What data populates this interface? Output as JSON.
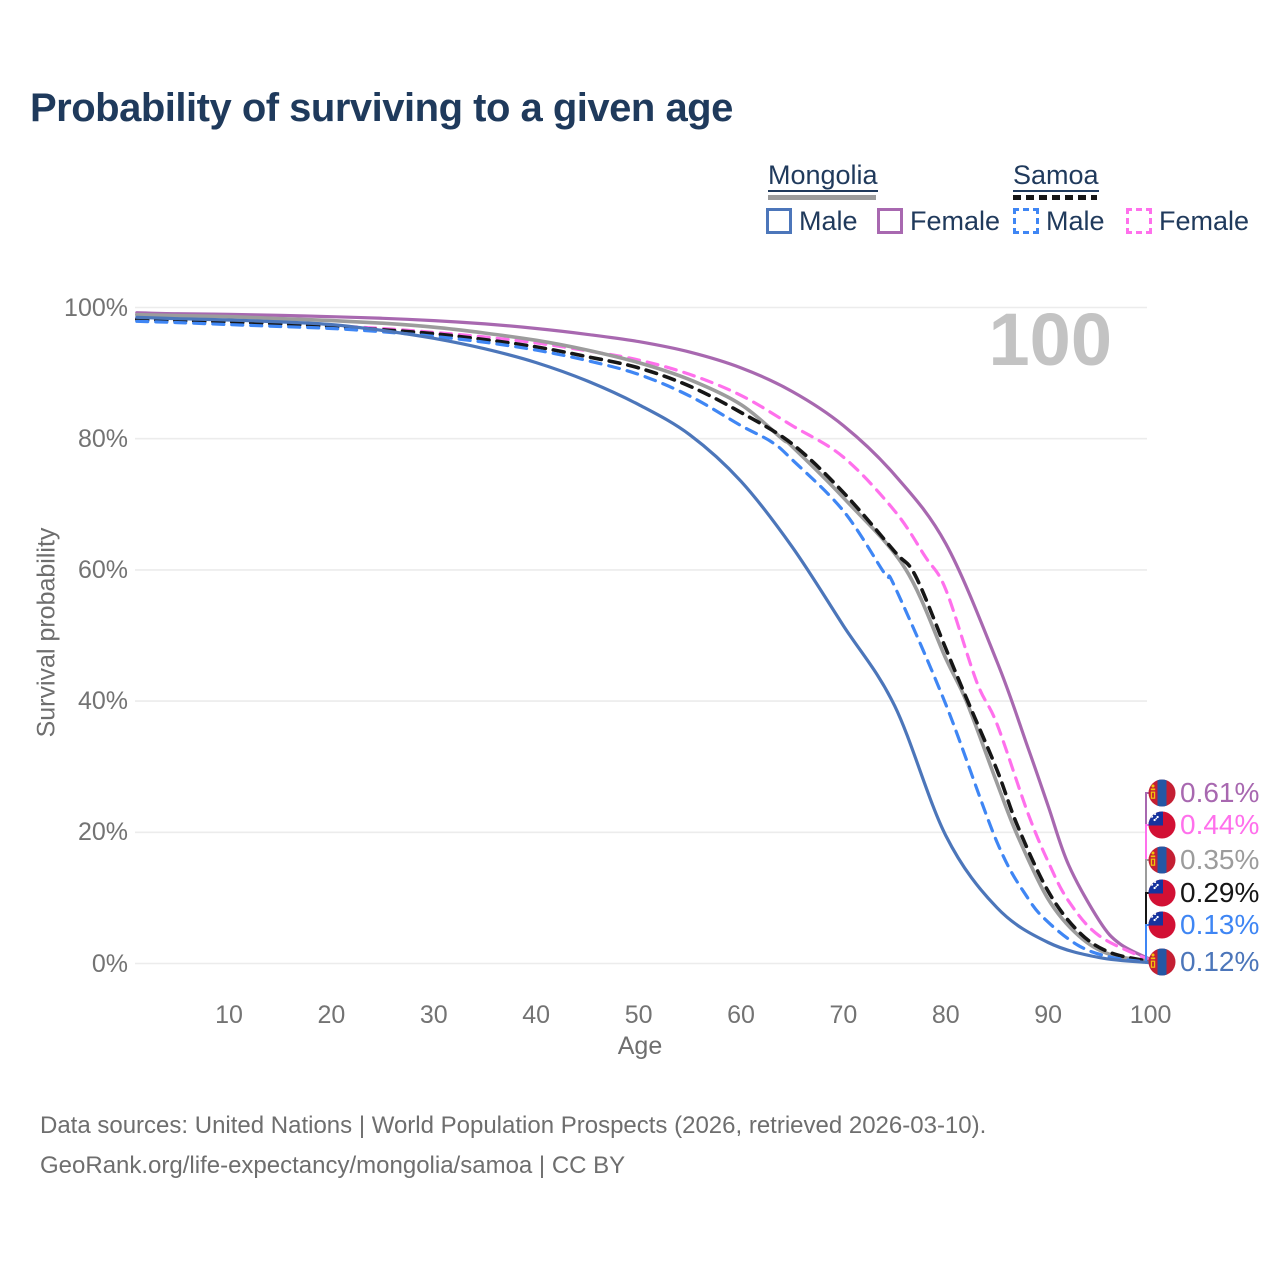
{
  "page": {
    "title": "Probability of surviving to a given age",
    "watermark": "100"
  },
  "legend": {
    "groups": [
      {
        "name": "Mongolia",
        "line_style": "solid",
        "line_color": "#9c9c9c",
        "items": [
          {
            "label": "Male",
            "color": "#4c76ba",
            "dashed": false
          },
          {
            "label": "Female",
            "color": "#a868b0",
            "dashed": false
          }
        ]
      },
      {
        "name": "Samoa",
        "line_style": "dashed",
        "line_color": "#161616",
        "items": [
          {
            "label": "Male",
            "color": "#3f86f4",
            "dashed": true
          },
          {
            "label": "Female",
            "color": "#ff70ec",
            "dashed": true
          }
        ]
      }
    ]
  },
  "axes": {
    "x": {
      "label": "Age",
      "ticks": [
        10,
        20,
        30,
        40,
        50,
        60,
        70,
        80,
        90,
        100
      ]
    },
    "y": {
      "label": "Survival probability",
      "ticks": [
        {
          "value": 0,
          "label": "0%"
        },
        {
          "value": 20,
          "label": "20%"
        },
        {
          "value": 40,
          "label": "40%"
        },
        {
          "value": 60,
          "label": "60%"
        },
        {
          "value": 80,
          "label": "80%"
        },
        {
          "value": 100,
          "label": "100%"
        }
      ]
    }
  },
  "chart_data": {
    "type": "line",
    "title": "Probability of surviving to a given age",
    "xlabel": "Age",
    "ylabel": "Survival probability",
    "xlim": [
      0,
      100
    ],
    "ylim": [
      0,
      100
    ],
    "grid": "horizontal",
    "legend_position": "top-right",
    "series": [
      {
        "id": "mongolia-female",
        "country": "Mongolia",
        "sex": "Female",
        "color": "#a868b0",
        "dashed": false,
        "flag": "mongolia",
        "end_label": "0.61%",
        "points": [
          [
            1,
            99.2
          ],
          [
            5,
            99.05
          ],
          [
            10,
            98.95
          ],
          [
            15,
            98.8
          ],
          [
            20,
            98.6
          ],
          [
            25,
            98.35
          ],
          [
            30,
            98.0
          ],
          [
            35,
            97.5
          ],
          [
            40,
            96.8
          ],
          [
            45,
            95.9
          ],
          [
            50,
            94.8
          ],
          [
            55,
            93.2
          ],
          [
            60,
            90.8
          ],
          [
            65,
            87.2
          ],
          [
            70,
            82.0
          ],
          [
            75,
            74.5
          ],
          [
            80,
            64.0
          ],
          [
            85,
            46.0
          ],
          [
            88,
            33.0
          ],
          [
            90,
            24.0
          ],
          [
            92,
            15.0
          ],
          [
            95,
            6.5
          ],
          [
            97,
            3.0
          ],
          [
            100,
            0.61
          ]
        ]
      },
      {
        "id": "samoa-female",
        "country": "Samoa",
        "sex": "Female",
        "color": "#ff70ec",
        "dashed": true,
        "flag": "samoa",
        "end_label": "0.44%",
        "points": [
          [
            1,
            98.3
          ],
          [
            5,
            98.1
          ],
          [
            10,
            97.8
          ],
          [
            15,
            97.5
          ],
          [
            20,
            97.2
          ],
          [
            25,
            96.8
          ],
          [
            30,
            96.2
          ],
          [
            35,
            95.5
          ],
          [
            40,
            94.6
          ],
          [
            45,
            93.4
          ],
          [
            50,
            92.0
          ],
          [
            55,
            89.8
          ],
          [
            60,
            86.6
          ],
          [
            65,
            82.0
          ],
          [
            70,
            77.2
          ],
          [
            75,
            69.0
          ],
          [
            78,
            62.0
          ],
          [
            80,
            57.0
          ],
          [
            83,
            43.0
          ],
          [
            85,
            36.5
          ],
          [
            88,
            23.0
          ],
          [
            90,
            15.5
          ],
          [
            92,
            9.5
          ],
          [
            95,
            4.2
          ],
          [
            100,
            0.44
          ]
        ]
      },
      {
        "id": "mongolia-total",
        "country": "Mongolia",
        "sex": "Both",
        "color": "#9c9c9c",
        "dashed": false,
        "flag": "mongolia",
        "end_label": "0.35%",
        "points": [
          [
            1,
            98.9
          ],
          [
            5,
            98.75
          ],
          [
            10,
            98.6
          ],
          [
            15,
            98.3
          ],
          [
            20,
            98.0
          ],
          [
            25,
            97.6
          ],
          [
            30,
            97.0
          ],
          [
            35,
            96.1
          ],
          [
            40,
            95.0
          ],
          [
            45,
            93.5
          ],
          [
            50,
            91.6
          ],
          [
            55,
            89.0
          ],
          [
            60,
            85.2
          ],
          [
            64,
            80.0
          ],
          [
            65,
            78.8
          ],
          [
            70,
            71.0
          ],
          [
            76,
            60.3
          ],
          [
            80,
            46.5
          ],
          [
            82,
            40.0
          ],
          [
            85,
            27.5
          ],
          [
            87,
            19.5
          ],
          [
            90,
            9.8
          ],
          [
            93,
            4.2
          ],
          [
            96,
            1.4
          ],
          [
            100,
            0.35
          ]
        ]
      },
      {
        "id": "samoa-total",
        "country": "Samoa",
        "sex": "Both",
        "color": "#161616",
        "dashed": true,
        "flag": "samoa",
        "end_label": "0.29%",
        "points": [
          [
            1,
            98.2
          ],
          [
            5,
            98.0
          ],
          [
            10,
            97.8
          ],
          [
            15,
            97.5
          ],
          [
            20,
            97.1
          ],
          [
            25,
            96.6
          ],
          [
            30,
            96.0
          ],
          [
            35,
            95.1
          ],
          [
            40,
            94.0
          ],
          [
            45,
            92.5
          ],
          [
            50,
            90.8
          ],
          [
            55,
            88.0
          ],
          [
            60,
            84.0
          ],
          [
            65,
            79.2
          ],
          [
            70,
            71.8
          ],
          [
            75,
            62.8
          ],
          [
            77,
            59.2
          ],
          [
            80,
            48.0
          ],
          [
            82,
            40.5
          ],
          [
            85,
            29.5
          ],
          [
            87,
            21.0
          ],
          [
            90,
            11.0
          ],
          [
            93,
            4.8
          ],
          [
            96,
            1.7
          ],
          [
            100,
            0.29
          ]
        ]
      },
      {
        "id": "samoa-male",
        "country": "Samoa",
        "sex": "Male",
        "color": "#3f86f4",
        "dashed": true,
        "flag": "samoa",
        "end_label": "0.13%",
        "points": [
          [
            1,
            97.9
          ],
          [
            5,
            97.7
          ],
          [
            10,
            97.4
          ],
          [
            15,
            97.1
          ],
          [
            20,
            96.8
          ],
          [
            25,
            96.3
          ],
          [
            30,
            95.6
          ],
          [
            35,
            94.7
          ],
          [
            40,
            93.5
          ],
          [
            45,
            91.9
          ],
          [
            50,
            89.8
          ],
          [
            55,
            86.5
          ],
          [
            60,
            82.0
          ],
          [
            63,
            79.5
          ],
          [
            65,
            76.8
          ],
          [
            70,
            69.0
          ],
          [
            74,
            59.5
          ],
          [
            75,
            57.5
          ],
          [
            80,
            39.5
          ],
          [
            85,
            18.5
          ],
          [
            88,
            10.0
          ],
          [
            90,
            6.3
          ],
          [
            93,
            2.7
          ],
          [
            96,
            1.0
          ],
          [
            100,
            0.13
          ]
        ]
      },
      {
        "id": "mongolia-male",
        "country": "Mongolia",
        "sex": "Male",
        "color": "#4c76ba",
        "dashed": false,
        "flag": "mongolia",
        "end_label": "0.12%",
        "points": [
          [
            1,
            98.5
          ],
          [
            5,
            98.3
          ],
          [
            10,
            98.1
          ],
          [
            15,
            97.8
          ],
          [
            20,
            97.4
          ],
          [
            25,
            96.5
          ],
          [
            30,
            95.3
          ],
          [
            35,
            93.7
          ],
          [
            40,
            91.6
          ],
          [
            45,
            88.8
          ],
          [
            50,
            85.2
          ],
          [
            55,
            80.6
          ],
          [
            60,
            73.5
          ],
          [
            65,
            63.5
          ],
          [
            70,
            51.5
          ],
          [
            75,
            39.3
          ],
          [
            80,
            19.5
          ],
          [
            85,
            8.5
          ],
          [
            90,
            3.2
          ],
          [
            95,
            0.9
          ],
          [
            100,
            0.12
          ]
        ]
      }
    ]
  },
  "footer": {
    "line1": "Data sources: United Nations | World Population Prospects (2026, retrieved 2026-03-10).",
    "line2": "GeoRank.org/life-expectancy/mongolia/samoa | CC BY"
  },
  "colors": {
    "title_text": "#1f3a5c",
    "legend_text": "#203a5c",
    "tick_text": "#737373",
    "gridline": "#ececec",
    "watermark": "#c3c3c3",
    "mongolia_flag_red": "#c41f33",
    "mongolia_flag_blue": "#2457a4",
    "mongolia_flag_yellow": "#f2c40d",
    "samoa_flag_red": "#d21034",
    "samoa_flag_blue": "#16339e"
  }
}
